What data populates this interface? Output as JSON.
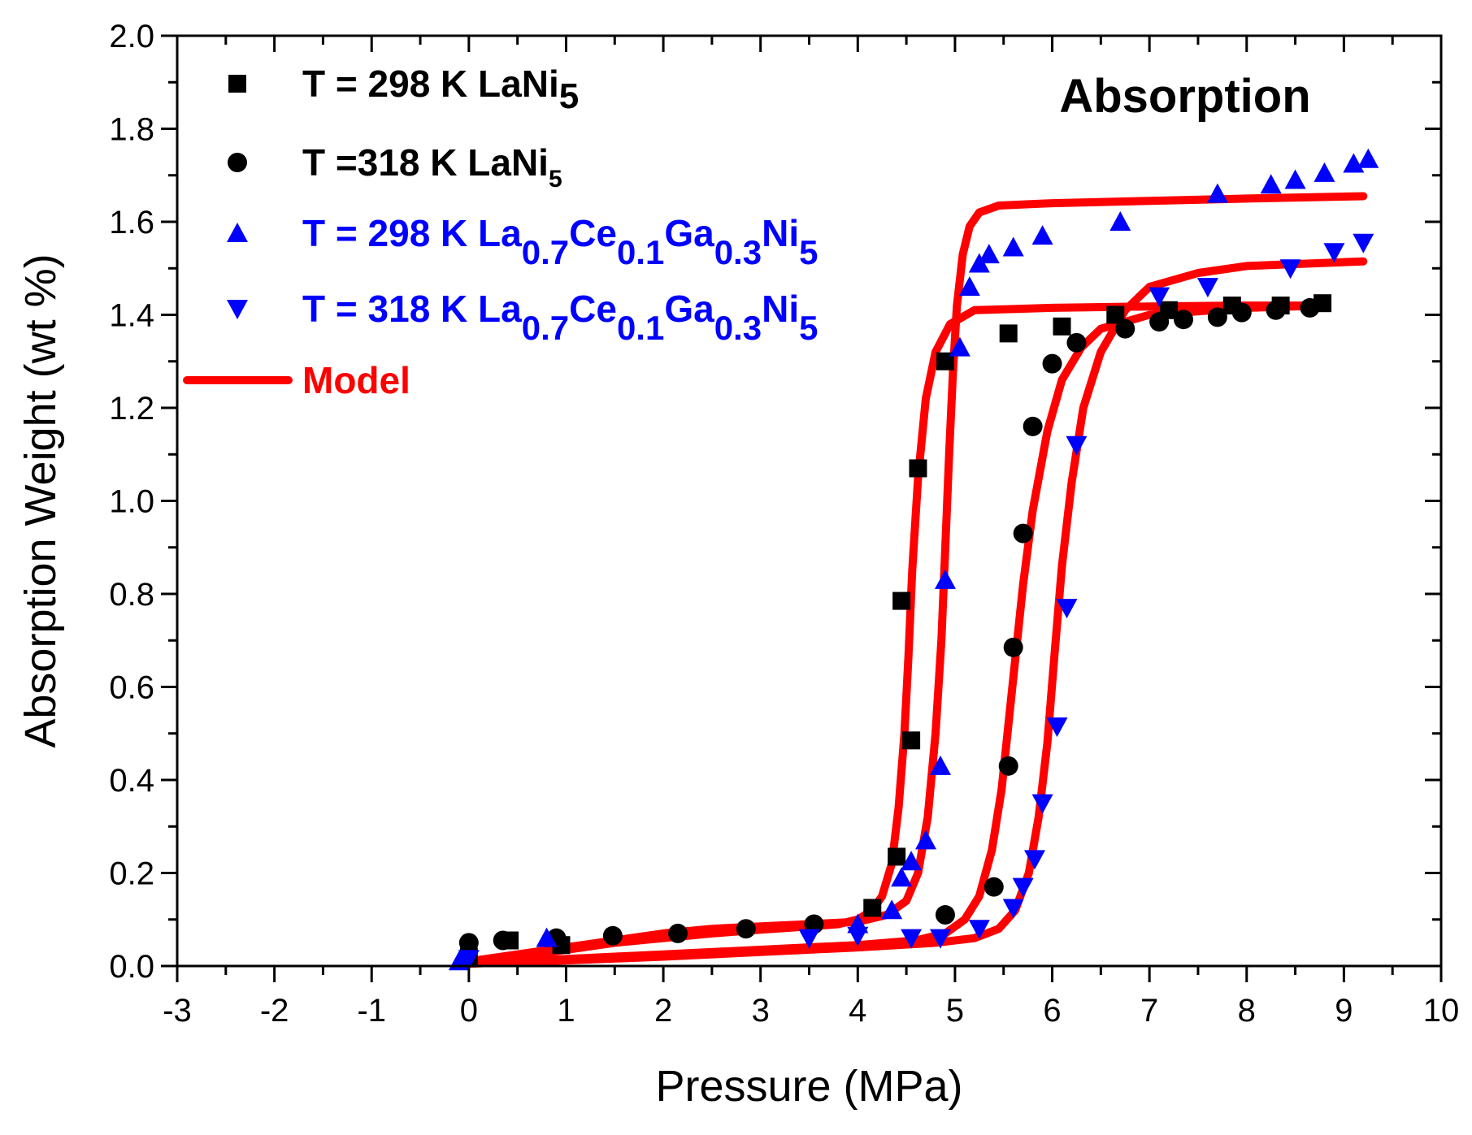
{
  "chart_data": {
    "type": "scatter",
    "title": "Absorption",
    "xlabel": "Pressure (MPa)",
    "ylabel": "Absorption Weight (wt %)",
    "xlim": [
      -3,
      10
    ],
    "ylim": [
      0.0,
      2.0
    ],
    "xticks": [
      "-3",
      "-2",
      "-1",
      "0",
      "1",
      "2",
      "3",
      "4",
      "5",
      "6",
      "7",
      "8",
      "9",
      "10"
    ],
    "yticks": [
      "0.0",
      "0.2",
      "0.4",
      "0.6",
      "0.8",
      "1.0",
      "1.2",
      "1.4",
      "1.6",
      "1.8",
      "2.0"
    ],
    "grid": false,
    "legend_position": "top-left",
    "legend": [
      {
        "base": "T = 298 K LaNi",
        "sub": "5"
      },
      {
        "base": "T =318 K LaNi",
        "sub": "5"
      },
      {
        "parts": [
          {
            "t": "T = 298 K La"
          },
          {
            "s": "0.7"
          },
          {
            "t": "Ce"
          },
          {
            "s": "0.1"
          },
          {
            "t": "Ga"
          },
          {
            "s": "0.3"
          },
          {
            "t": "Ni"
          },
          {
            "s": "5"
          }
        ]
      },
      {
        "parts": [
          {
            "t": "T = 318 K La"
          },
          {
            "s": "0.7"
          },
          {
            "t": "Ce"
          },
          {
            "s": "0.1"
          },
          {
            "t": "Ga"
          },
          {
            "s": "0.3"
          },
          {
            "t": "Ni"
          },
          {
            "s": "5"
          }
        ]
      },
      {
        "base": "Model"
      }
    ],
    "colors": {
      "black": "#000000",
      "blue": "#0000ff",
      "model": "#ff0000"
    },
    "series": [
      {
        "marker": "square",
        "color": "#000000",
        "x": [
          0.0,
          0.42,
          0.95,
          4.15,
          4.4,
          4.45,
          4.55,
          4.62,
          4.9,
          5.55,
          6.1,
          6.65,
          7.2,
          7.85,
          8.35,
          8.78
        ],
        "y": [
          0.02,
          0.055,
          0.045,
          0.125,
          0.235,
          0.785,
          0.485,
          1.07,
          1.3,
          1.36,
          1.375,
          1.4,
          1.41,
          1.42,
          1.42,
          1.425
        ]
      },
      {
        "marker": "circle",
        "color": "#000000",
        "x": [
          0.0,
          0.35,
          0.9,
          1.48,
          2.15,
          2.85,
          3.55,
          4.9,
          5.4,
          5.55,
          5.6,
          5.7,
          5.8,
          6.0,
          6.25,
          6.75,
          7.1,
          7.35,
          7.7,
          7.95,
          8.3,
          8.65
        ],
        "y": [
          0.05,
          0.055,
          0.06,
          0.065,
          0.07,
          0.08,
          0.09,
          0.11,
          0.17,
          0.43,
          0.685,
          0.93,
          1.16,
          1.295,
          1.34,
          1.37,
          1.385,
          1.39,
          1.395,
          1.405,
          1.41,
          1.415
        ]
      },
      {
        "marker": "triangle-up",
        "color": "#0000ff",
        "x": [
          -0.1,
          0.8,
          4.0,
          4.35,
          4.45,
          4.55,
          4.7,
          4.85,
          4.9,
          5.05,
          5.15,
          5.25,
          5.35,
          5.6,
          5.9,
          6.7,
          7.7,
          8.25,
          8.5,
          8.8,
          9.1,
          9.25
        ],
        "y": [
          0.01,
          0.06,
          0.09,
          0.12,
          0.19,
          0.225,
          0.27,
          0.43,
          0.83,
          1.33,
          1.46,
          1.51,
          1.53,
          1.545,
          1.57,
          1.6,
          1.66,
          1.68,
          1.69,
          1.705,
          1.725,
          1.735
        ]
      },
      {
        "marker": "triangle-down",
        "color": "#0000ff",
        "x": [
          0.0,
          3.5,
          4.0,
          4.55,
          4.85,
          5.25,
          5.6,
          5.7,
          5.82,
          5.9,
          6.05,
          6.15,
          6.25,
          7.1,
          7.6,
          8.45,
          8.9,
          9.2
        ],
        "y": [
          0.015,
          0.06,
          0.065,
          0.06,
          0.06,
          0.08,
          0.125,
          0.17,
          0.23,
          0.35,
          0.515,
          0.77,
          1.12,
          1.44,
          1.46,
          1.5,
          1.535,
          1.555
        ]
      }
    ],
    "model_curves": [
      {
        "x": [
          0,
          0.5,
          1,
          1.5,
          2,
          2.5,
          3,
          3.5,
          3.8,
          4.0,
          4.15,
          4.25,
          4.35,
          4.42,
          4.48,
          4.52,
          4.56,
          4.62,
          4.7,
          4.8,
          4.95,
          5.2,
          6,
          7,
          8,
          8.8
        ],
        "y": [
          0.01,
          0.02,
          0.035,
          0.05,
          0.06,
          0.07,
          0.078,
          0.085,
          0.09,
          0.1,
          0.12,
          0.15,
          0.22,
          0.34,
          0.5,
          0.66,
          0.85,
          1.05,
          1.22,
          1.32,
          1.38,
          1.41,
          1.415,
          1.418,
          1.42,
          1.42
        ]
      },
      {
        "x": [
          0,
          0.5,
          1,
          1.5,
          2,
          2.5,
          3,
          3.5,
          4.0,
          4.3,
          4.5,
          4.62,
          4.72,
          4.8,
          4.86,
          4.9,
          4.94,
          4.98,
          5.02,
          5.08,
          5.15,
          5.25,
          5.45,
          6,
          7,
          8,
          9.2
        ],
        "y": [
          0.01,
          0.025,
          0.04,
          0.055,
          0.07,
          0.08,
          0.085,
          0.09,
          0.095,
          0.11,
          0.14,
          0.2,
          0.32,
          0.5,
          0.7,
          0.9,
          1.1,
          1.28,
          1.42,
          1.53,
          1.59,
          1.62,
          1.635,
          1.64,
          1.645,
          1.65,
          1.655
        ]
      },
      {
        "x": [
          0,
          0.5,
          1,
          1.5,
          2,
          3,
          4,
          4.6,
          4.9,
          5.1,
          5.25,
          5.38,
          5.48,
          5.55,
          5.62,
          5.7,
          5.8,
          5.95,
          6.1,
          6.3,
          6.5,
          7,
          8,
          8.8
        ],
        "y": [
          0.005,
          0.01,
          0.015,
          0.02,
          0.025,
          0.035,
          0.045,
          0.055,
          0.07,
          0.1,
          0.15,
          0.25,
          0.38,
          0.52,
          0.66,
          0.82,
          0.98,
          1.15,
          1.26,
          1.33,
          1.37,
          1.4,
          1.415,
          1.42
        ]
      },
      {
        "x": [
          0,
          1,
          2,
          3,
          4,
          4.8,
          5.2,
          5.45,
          5.62,
          5.76,
          5.86,
          5.95,
          6.02,
          6.1,
          6.2,
          6.32,
          6.5,
          6.75,
          7,
          7.5,
          8,
          9.2
        ],
        "y": [
          0.005,
          0.012,
          0.02,
          0.03,
          0.04,
          0.05,
          0.06,
          0.08,
          0.12,
          0.2,
          0.32,
          0.48,
          0.66,
          0.86,
          1.04,
          1.2,
          1.32,
          1.41,
          1.46,
          1.49,
          1.505,
          1.515
        ]
      }
    ]
  }
}
